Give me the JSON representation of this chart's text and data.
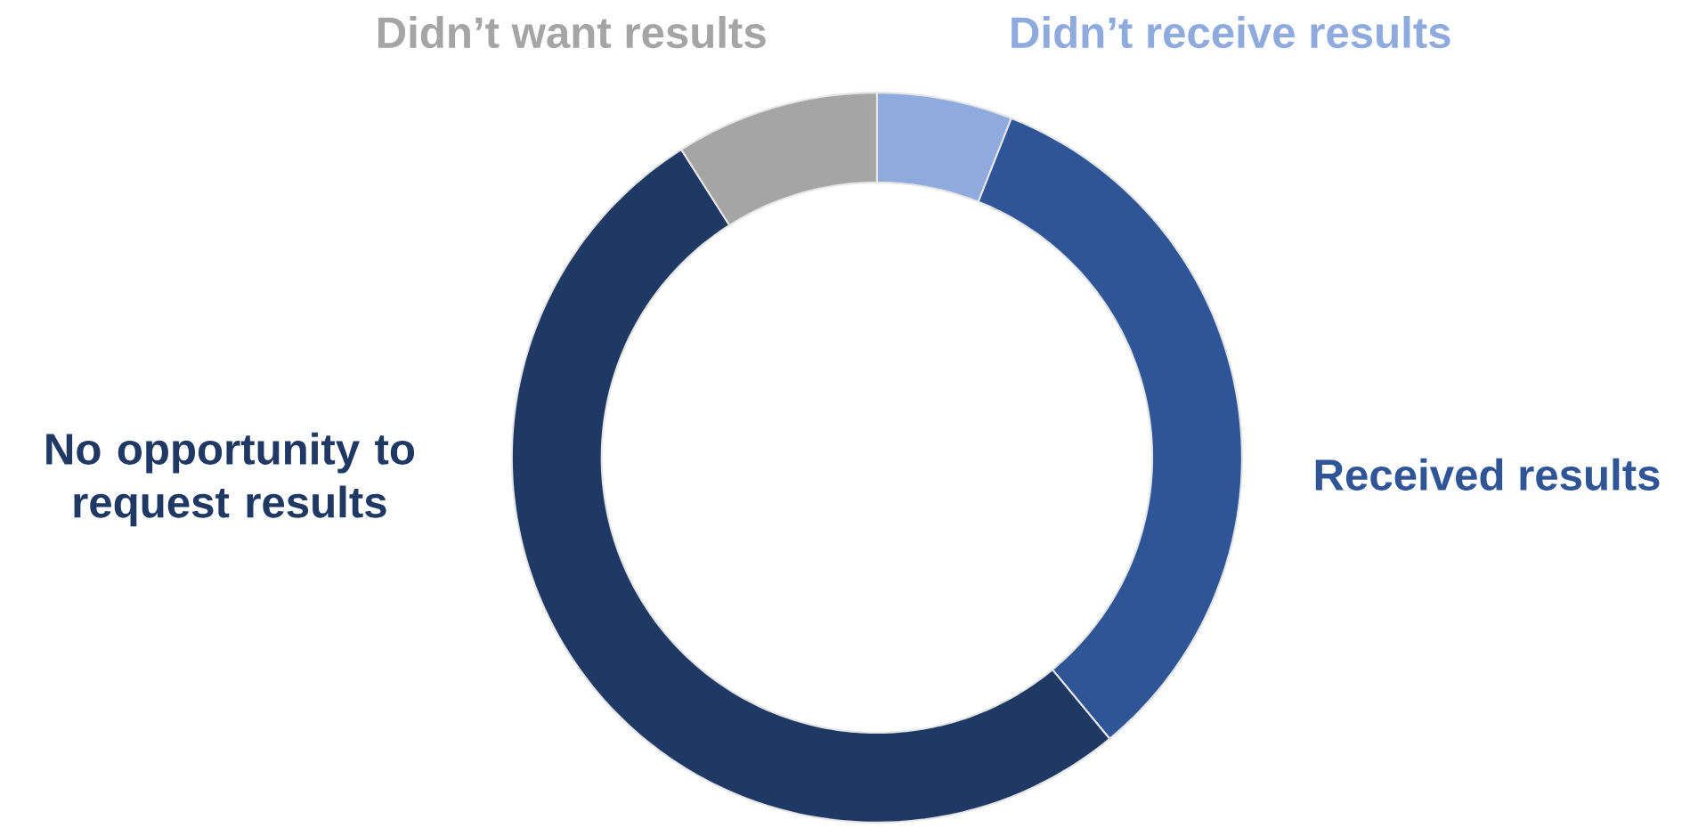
{
  "chart_data": {
    "type": "donut",
    "categories": [
      "Didn’t receive results",
      "Received results",
      "No opportunity to request results",
      "Didn’t want results"
    ],
    "values": [
      6,
      33,
      52,
      9
    ],
    "colors": [
      "#8faadc",
      "#2f5597",
      "#203864",
      "#a5a5a5"
    ]
  }
}
